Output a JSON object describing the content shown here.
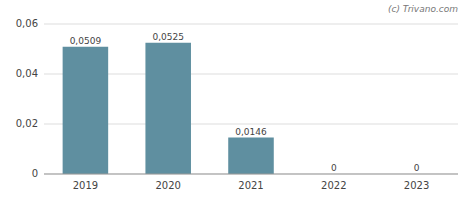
{
  "chart_data": {
    "type": "bar",
    "categories": [
      "2019",
      "2020",
      "2021",
      "2022",
      "2023"
    ],
    "values": [
      0.0509,
      0.0525,
      0.0146,
      0,
      0
    ],
    "value_labels": [
      "0,0509",
      "0,0525",
      "0,0146",
      "0",
      "0"
    ],
    "data_labels": true,
    "color": "#5f8fa0",
    "ylim": [
      0,
      0.06
    ],
    "yticks": [
      0,
      {
        "value": 0.02,
        "label": "0,02"
      },
      {
        "value": 0.04,
        "label": "0,04"
      },
      {
        "value": 0.06,
        "label": "0,06"
      }
    ],
    "grid": true,
    "annotations": [
      "(c) Trivano.com"
    ]
  }
}
